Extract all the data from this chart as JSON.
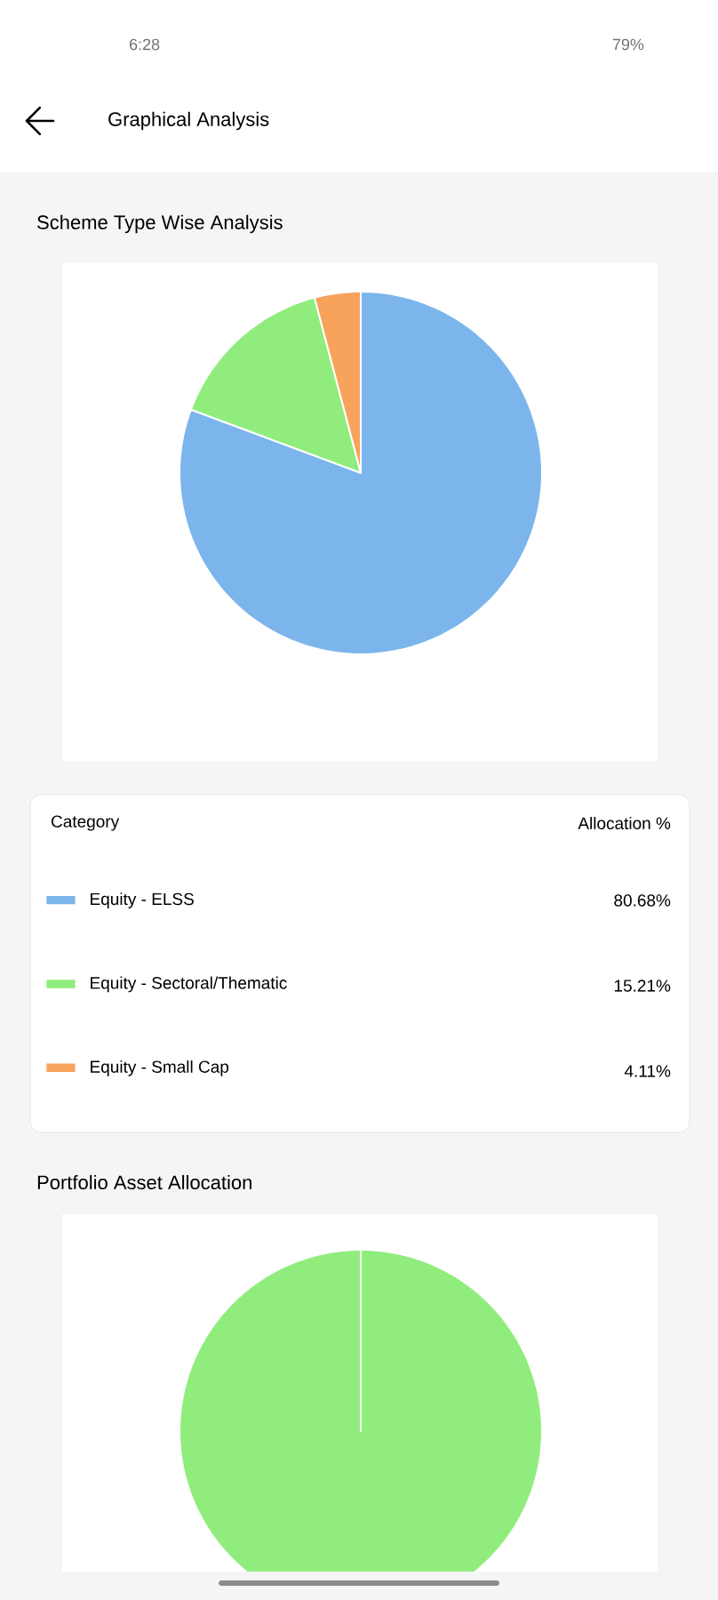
{
  "chart_data": [
    {
      "type": "pie",
      "title": "Scheme Type Wise Analysis",
      "legend": "bottom",
      "legend_title": "Category",
      "annotations": [
        "6:28",
        "79%",
        "Graphical Analysis",
        "Allocation %"
      ],
      "categories": [
        "Equity - ELSS",
        "Equity - Sectoral/Thematic",
        "Equity - Small Cap"
      ],
      "values": [
        80.68,
        15.21,
        4.11
      ],
      "value_labels": [
        "80.68%",
        "15.21%",
        "4.11%"
      ],
      "colors": [
        "#7cb5ec",
        "#90ed7d",
        "#f7a35c"
      ]
    },
    {
      "type": "pie",
      "title": "Portfolio Asset Allocation",
      "categories": [
        null
      ],
      "values": [
        100
      ],
      "colors": [
        "#90ed7d"
      ]
    }
  ]
}
